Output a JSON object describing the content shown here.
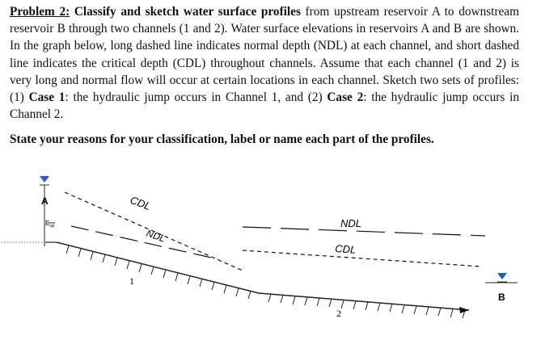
{
  "problem": {
    "label": "Problem 2:",
    "heading": "Classify and sketch water surface profiles",
    "intro": " from upstream reservoir A to downstream reservoir B through two channels (1 and 2). Water surface elevations in reservoirs A and B are shown. In the graph below, long dashed line indicates normal depth (NDL) at each channel, and short dashed line indicates the critical depth (CDL) throughout channels. Assume that each channel (1 and 2) is very long and normal flow will occur at certain locations in each channel. Sketch two sets of profiles: (1) ",
    "case1_label": "Case 1",
    "case1_text": ": the hydraulic jump occurs in Channel 1, and (2) ",
    "case2_label": "Case 2",
    "case2_text": ": the hydraulic jump occurs in Channel 2."
  },
  "question": "State your reasons for your classification, label or name each part of the profiles.",
  "diagram": {
    "reservoir_a_label": "A",
    "elevation_label": "E",
    "elevation_sub": "up",
    "reservoir_b_label": "B",
    "channel_1_label": "1",
    "channel_2_label": "2",
    "cdl_label_1": "CDL",
    "ndl_label_1": "NDL",
    "ndl_label_2": "NDL",
    "cdl_label_2": "CDL",
    "water_marker_color": "#1a5ed8"
  }
}
